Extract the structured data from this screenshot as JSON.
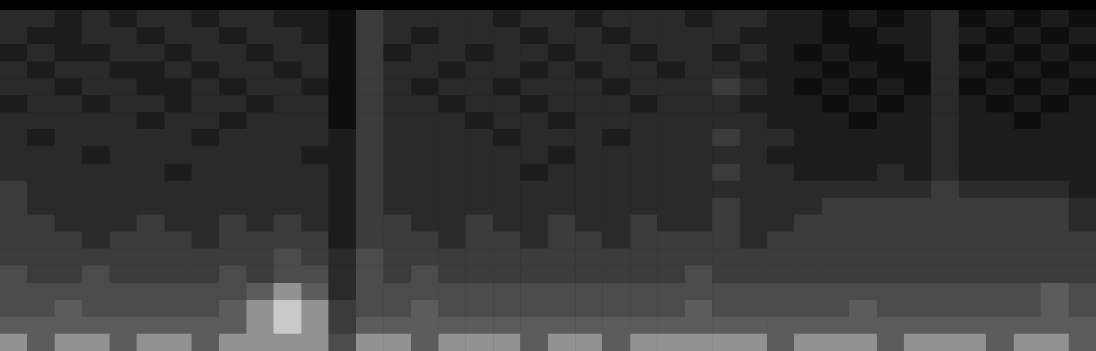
{
  "chart_data": {
    "type": "heatmap",
    "cells": [
      [
        3,
        3,
        2,
        3,
        2,
        3,
        3,
        2,
        3,
        3,
        2,
        2,
        1,
        4,
        3,
        3,
        3,
        3,
        2,
        3,
        3,
        2,
        3,
        3,
        3,
        2,
        3,
        3,
        2,
        2,
        1,
        2,
        1,
        2,
        3,
        1,
        2,
        1,
        2,
        1
      ],
      [
        3,
        2,
        2,
        3,
        3,
        2,
        3,
        3,
        2,
        3,
        3,
        2,
        1,
        4,
        3,
        2,
        3,
        3,
        3,
        2,
        3,
        3,
        2,
        3,
        3,
        3,
        3,
        2,
        2,
        2,
        1,
        1,
        2,
        2,
        3,
        2,
        1,
        2,
        1,
        2
      ],
      [
        2,
        3,
        2,
        2,
        3,
        3,
        2,
        3,
        3,
        2,
        3,
        3,
        1,
        4,
        2,
        3,
        3,
        2,
        3,
        3,
        2,
        3,
        3,
        2,
        3,
        3,
        2,
        3,
        2,
        1,
        2,
        1,
        1,
        2,
        3,
        1,
        2,
        1,
        2,
        1
      ],
      [
        3,
        2,
        3,
        3,
        2,
        2,
        3,
        2,
        3,
        3,
        2,
        3,
        1,
        4,
        3,
        3,
        2,
        3,
        3,
        2,
        3,
        2,
        3,
        3,
        2,
        3,
        3,
        2,
        2,
        2,
        1,
        2,
        1,
        1,
        3,
        2,
        1,
        2,
        1,
        2
      ],
      [
        3,
        3,
        2,
        3,
        3,
        2,
        2,
        3,
        2,
        3,
        3,
        2,
        1,
        4,
        3,
        2,
        3,
        3,
        2,
        3,
        3,
        3,
        2,
        3,
        3,
        3,
        4,
        3,
        2,
        1,
        2,
        1,
        2,
        1,
        3,
        1,
        2,
        1,
        2,
        1
      ],
      [
        2,
        3,
        3,
        2,
        3,
        3,
        2,
        3,
        3,
        2,
        3,
        3,
        1,
        4,
        3,
        3,
        2,
        3,
        3,
        2,
        3,
        3,
        3,
        2,
        3,
        3,
        3,
        2,
        2,
        2,
        1,
        2,
        1,
        2,
        3,
        2,
        1,
        2,
        1,
        2
      ],
      [
        3,
        3,
        3,
        3,
        3,
        2,
        3,
        3,
        2,
        3,
        3,
        3,
        1,
        4,
        3,
        3,
        3,
        2,
        3,
        3,
        2,
        3,
        3,
        3,
        3,
        3,
        3,
        3,
        2,
        2,
        2,
        1,
        2,
        2,
        3,
        2,
        2,
        1,
        2,
        2
      ],
      [
        3,
        2,
        3,
        3,
        3,
        3,
        3,
        2,
        3,
        3,
        3,
        3,
        2,
        4,
        3,
        3,
        3,
        3,
        2,
        3,
        3,
        3,
        2,
        3,
        3,
        3,
        4,
        3,
        3,
        2,
        2,
        2,
        2,
        2,
        3,
        2,
        2,
        2,
        2,
        2
      ],
      [
        3,
        3,
        3,
        2,
        3,
        3,
        3,
        3,
        3,
        3,
        3,
        2,
        2,
        4,
        3,
        3,
        3,
        3,
        3,
        3,
        2,
        3,
        3,
        3,
        3,
        3,
        3,
        3,
        2,
        2,
        2,
        2,
        2,
        2,
        3,
        2,
        2,
        2,
        2,
        2
      ],
      [
        3,
        3,
        3,
        3,
        3,
        3,
        2,
        3,
        3,
        3,
        3,
        3,
        2,
        4,
        3,
        3,
        3,
        3,
        3,
        2,
        3,
        3,
        3,
        3,
        3,
        3,
        4,
        3,
        3,
        2,
        2,
        2,
        3,
        2,
        3,
        2,
        2,
        2,
        2,
        2
      ],
      [
        4,
        3,
        3,
        3,
        3,
        3,
        3,
        3,
        3,
        3,
        3,
        3,
        2,
        4,
        3,
        3,
        3,
        3,
        3,
        3,
        3,
        3,
        3,
        3,
        3,
        3,
        3,
        3,
        3,
        3,
        3,
        3,
        3,
        3,
        4,
        3,
        3,
        3,
        3,
        2
      ],
      [
        4,
        3,
        3,
        3,
        3,
        3,
        3,
        3,
        3,
        3,
        3,
        3,
        2,
        4,
        3,
        3,
        3,
        3,
        3,
        3,
        3,
        3,
        3,
        3,
        3,
        3,
        4,
        3,
        3,
        3,
        4,
        4,
        4,
        4,
        4,
        4,
        4,
        4,
        4,
        3
      ],
      [
        4,
        4,
        3,
        3,
        3,
        4,
        3,
        3,
        4,
        3,
        4,
        3,
        2,
        4,
        4,
        3,
        3,
        4,
        3,
        3,
        4,
        3,
        3,
        4,
        3,
        3,
        4,
        3,
        3,
        4,
        4,
        4,
        4,
        4,
        4,
        4,
        4,
        4,
        4,
        3
      ],
      [
        4,
        4,
        4,
        3,
        4,
        4,
        4,
        3,
        4,
        4,
        4,
        4,
        2,
        4,
        4,
        4,
        3,
        4,
        4,
        3,
        4,
        4,
        3,
        4,
        4,
        4,
        4,
        3,
        4,
        4,
        4,
        4,
        4,
        4,
        4,
        4,
        4,
        4,
        4,
        4
      ],
      [
        4,
        4,
        4,
        4,
        4,
        4,
        4,
        4,
        4,
        4,
        5,
        4,
        3,
        5,
        4,
        4,
        4,
        4,
        4,
        4,
        4,
        4,
        4,
        4,
        4,
        4,
        4,
        4,
        4,
        4,
        4,
        4,
        4,
        4,
        4,
        4,
        4,
        4,
        4,
        4
      ],
      [
        5,
        4,
        4,
        5,
        4,
        4,
        4,
        4,
        5,
        4,
        5,
        5,
        3,
        5,
        4,
        5,
        4,
        4,
        4,
        4,
        4,
        4,
        4,
        4,
        4,
        5,
        4,
        4,
        4,
        4,
        4,
        4,
        4,
        4,
        4,
        4,
        4,
        4,
        4,
        4
      ],
      [
        5,
        5,
        5,
        5,
        5,
        5,
        5,
        5,
        5,
        6,
        7,
        6,
        3,
        5,
        5,
        5,
        5,
        5,
        5,
        5,
        5,
        5,
        5,
        5,
        5,
        5,
        5,
        5,
        5,
        5,
        5,
        5,
        5,
        5,
        5,
        5,
        5,
        5,
        6,
        5
      ],
      [
        5,
        5,
        6,
        5,
        5,
        5,
        5,
        5,
        6,
        7,
        8,
        7,
        4,
        5,
        5,
        6,
        5,
        5,
        5,
        5,
        5,
        5,
        5,
        5,
        5,
        6,
        5,
        5,
        5,
        5,
        5,
        6,
        5,
        5,
        5,
        5,
        5,
        5,
        6,
        5
      ],
      [
        6,
        6,
        6,
        6,
        6,
        6,
        6,
        6,
        6,
        7,
        8,
        7,
        4,
        6,
        6,
        6,
        6,
        6,
        6,
        6,
        6,
        6,
        6,
        6,
        6,
        6,
        6,
        6,
        6,
        6,
        6,
        6,
        6,
        6,
        6,
        6,
        6,
        6,
        6,
        6
      ],
      [
        7,
        6,
        7,
        7,
        6,
        7,
        7,
        6,
        7,
        7,
        7,
        7,
        5,
        7,
        7,
        6,
        7,
        7,
        7,
        6,
        7,
        7,
        6,
        7,
        7,
        7,
        7,
        7,
        6,
        7,
        7,
        7,
        6,
        7,
        7,
        7,
        6,
        7,
        7,
        6
      ]
    ],
    "value_range": [
      0,
      9
    ],
    "colors": [
      "#000000",
      "#2a2a2a",
      "#5c5c5c",
      "#ffffff"
    ],
    "tick_labels": false,
    "grid": false
  }
}
